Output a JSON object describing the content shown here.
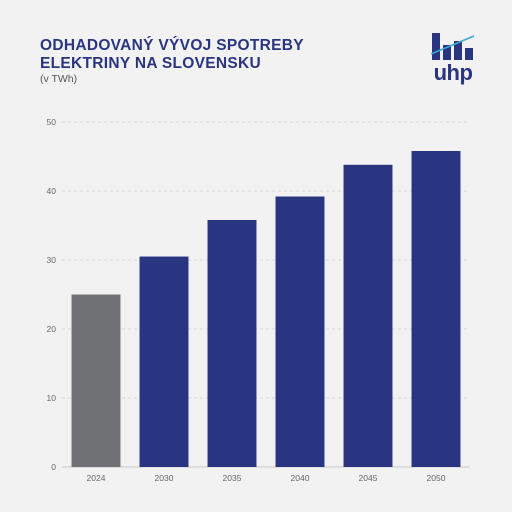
{
  "colors": {
    "title": "#2a3582",
    "bar_primary": "#2a3582",
    "bar_actual": "#707174",
    "grid": "#d0d0d0",
    "axis_text": "#666666",
    "background": "#f2f2f2",
    "logo_accent": "#3aa8d8"
  },
  "header": {
    "title_line1": "ODHADOVANÝ VÝVOJ SPOTREBY",
    "title_line2": "ELEKTRINY NA SLOVENSKU",
    "subtitle": "(v TWh)"
  },
  "logo": {
    "text": "uhp",
    "icon": "bar-chart-logo-icon"
  },
  "chart_data": {
    "type": "bar",
    "title": "ODHADOVANÝ VÝVOJ SPOTREBY ELEKTRINY NA SLOVENSKU",
    "subtitle": "(v TWh)",
    "xlabel": "",
    "ylabel": "",
    "categories": [
      "2024",
      "2030",
      "2035",
      "2040",
      "2045",
      "2050"
    ],
    "values": [
      25.0,
      30.5,
      35.8,
      39.2,
      43.8,
      45.8
    ],
    "bar_kinds": [
      "actual",
      "estimate",
      "estimate",
      "estimate",
      "estimate",
      "estimate"
    ],
    "ylim": [
      0,
      50
    ],
    "yticks": [
      0,
      10,
      20,
      30,
      40,
      50
    ],
    "grid": true,
    "legend": "none"
  }
}
